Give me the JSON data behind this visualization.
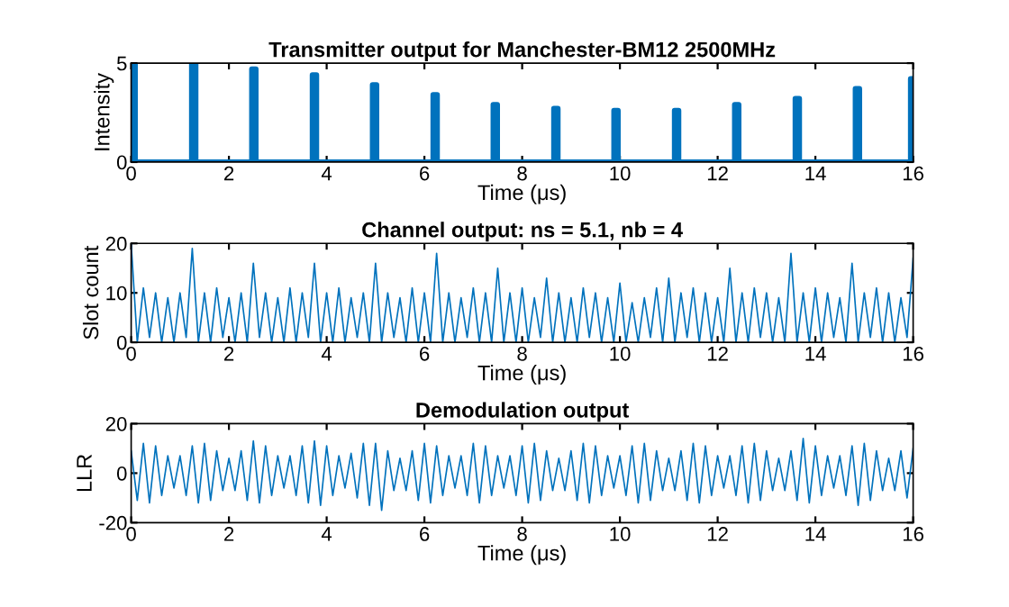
{
  "chart_data": [
    {
      "type": "line",
      "title": "Transmitter output for Manchester-BM12 2500MHz",
      "xlabel": "Time (μs)",
      "ylabel": "Intensity",
      "series": [
        {
          "color": "#0072bd",
          "x": [
            0,
            0,
            0.08,
            0.08,
            1.24,
            1.24,
            1.32,
            1.32,
            2.47,
            2.47,
            2.55,
            2.55,
            3.71,
            3.71,
            3.79,
            3.79,
            4.94,
            4.94,
            5.02,
            5.02,
            6.18,
            6.18,
            6.26,
            6.26,
            7.41,
            7.41,
            7.49,
            7.49,
            8.65,
            8.65,
            8.73,
            8.73,
            9.88,
            9.88,
            9.96,
            9.96,
            11.12,
            11.12,
            11.2,
            11.2,
            12.35,
            12.35,
            12.43,
            12.43,
            13.59,
            13.59,
            13.67,
            13.67,
            14.82,
            14.82,
            14.9,
            14.9,
            15.95,
            15.95,
            16
          ],
          "values": [
            0,
            5,
            5,
            0,
            0,
            5,
            5,
            0,
            0,
            4.7,
            4.7,
            0,
            0,
            4.4,
            4.4,
            0,
            0,
            3.9,
            3.9,
            0,
            0,
            3.4,
            3.4,
            0,
            0,
            2.9,
            2.9,
            0,
            0,
            2.7,
            2.7,
            0,
            0,
            2.6,
            2.6,
            0,
            0,
            2.6,
            2.6,
            0,
            0,
            2.9,
            2.9,
            0,
            0,
            3.2,
            3.2,
            0,
            0,
            3.7,
            3.7,
            0,
            0,
            4.2,
            4.2
          ]
        }
      ],
      "xlim": [
        0,
        16
      ],
      "xticks": [
        0,
        2,
        4,
        6,
        8,
        10,
        12,
        14,
        16
      ],
      "ylim": [
        0,
        5
      ],
      "yticks": [
        0,
        5
      ],
      "grid": false,
      "marker": "none",
      "line_style": "solid"
    },
    {
      "type": "line",
      "title": "Channel output: ns = 5.1, nb = 4",
      "xlabel": "Time (μs)",
      "ylabel": "Slot count",
      "series": [
        {
          "color": "#0072bd",
          "x": [
            0,
            0.125,
            0.25,
            0.375,
            0.5,
            0.625,
            0.75,
            0.875,
            1,
            1.125,
            1.25,
            1.375,
            1.5,
            1.625,
            1.75,
            1.875,
            2,
            2.125,
            2.25,
            2.375,
            2.5,
            2.625,
            2.75,
            2.875,
            3,
            3.125,
            3.25,
            3.375,
            3.5,
            3.625,
            3.75,
            3.875,
            4,
            4.125,
            4.25,
            4.375,
            4.5,
            4.625,
            4.75,
            4.875,
            5,
            5.125,
            5.25,
            5.375,
            5.5,
            5.625,
            5.75,
            5.875,
            6,
            6.125,
            6.25,
            6.375,
            6.5,
            6.625,
            6.75,
            6.875,
            7,
            7.125,
            7.25,
            7.375,
            7.5,
            7.625,
            7.75,
            7.875,
            8,
            8.125,
            8.25,
            8.375,
            8.5,
            8.625,
            8.75,
            8.875,
            9,
            9.125,
            9.25,
            9.375,
            9.5,
            9.625,
            9.75,
            9.875,
            10,
            10.125,
            10.25,
            10.375,
            10.5,
            10.625,
            10.75,
            10.875,
            11,
            11.125,
            11.25,
            11.375,
            11.5,
            11.625,
            11.75,
            11.875,
            12,
            12.125,
            12.25,
            12.375,
            12.5,
            12.625,
            12.75,
            12.875,
            13,
            13.125,
            13.25,
            13.375,
            13.5,
            13.625,
            13.75,
            13.875,
            14,
            14.125,
            14.25,
            14.375,
            14.5,
            14.625,
            14.75,
            14.875,
            15,
            15.125,
            15.25,
            15.375,
            15.5,
            15.625,
            15.75,
            15.875,
            16
          ],
          "values": [
            20,
            0,
            11,
            1,
            10,
            0,
            9,
            0,
            10,
            1,
            19,
            0,
            10,
            0,
            11,
            1,
            9,
            0,
            10,
            0,
            16,
            1,
            10,
            0,
            9,
            0,
            11,
            0,
            10,
            1,
            16,
            0,
            10,
            0,
            11,
            0,
            9,
            1,
            10,
            0,
            16,
            0,
            10,
            1,
            9,
            0,
            11,
            0,
            10,
            0,
            18,
            0,
            10,
            0,
            9,
            1,
            11,
            0,
            10,
            0,
            15,
            0,
            10,
            0,
            11,
            0,
            9,
            1,
            13,
            0,
            10,
            0,
            9,
            0,
            11,
            1,
            10,
            0,
            9,
            0,
            12,
            0,
            8,
            0,
            9,
            1,
            11,
            0,
            13,
            0,
            10,
            1,
            11,
            0,
            10,
            0,
            9,
            0,
            15,
            0,
            10,
            0,
            11,
            1,
            10,
            0,
            9,
            0,
            18,
            0,
            10,
            0,
            11,
            0,
            10,
            1,
            9,
            0,
            16,
            0,
            10,
            1,
            11,
            0,
            10,
            0,
            9,
            1,
            17
          ]
        }
      ],
      "xlim": [
        0,
        16
      ],
      "xticks": [
        0,
        2,
        4,
        6,
        8,
        10,
        12,
        14,
        16
      ],
      "ylim": [
        0,
        20
      ],
      "yticks": [
        0,
        10,
        20
      ],
      "grid": false,
      "marker": "none",
      "line_style": "solid"
    },
    {
      "type": "line",
      "title": "Demodulation output",
      "xlabel": "Time (μs)",
      "ylabel": "LLR",
      "series": [
        {
          "color": "#0072bd",
          "x": [
            0,
            0.125,
            0.25,
            0.375,
            0.5,
            0.625,
            0.75,
            0.875,
            1,
            1.125,
            1.25,
            1.375,
            1.5,
            1.625,
            1.75,
            1.875,
            2,
            2.125,
            2.25,
            2.375,
            2.5,
            2.625,
            2.75,
            2.875,
            3,
            3.125,
            3.25,
            3.375,
            3.5,
            3.625,
            3.75,
            3.875,
            4,
            4.125,
            4.25,
            4.375,
            4.5,
            4.625,
            4.75,
            4.875,
            5,
            5.125,
            5.25,
            5.375,
            5.5,
            5.625,
            5.75,
            5.875,
            6,
            6.125,
            6.25,
            6.375,
            6.5,
            6.625,
            6.75,
            6.875,
            7,
            7.125,
            7.25,
            7.375,
            7.5,
            7.625,
            7.75,
            7.875,
            8,
            8.125,
            8.25,
            8.375,
            8.5,
            8.625,
            8.75,
            8.875,
            9,
            9.125,
            9.25,
            9.375,
            9.5,
            9.625,
            9.75,
            9.875,
            10,
            10.125,
            10.25,
            10.375,
            10.5,
            10.625,
            10.75,
            10.875,
            11,
            11.125,
            11.25,
            11.375,
            11.5,
            11.625,
            11.75,
            11.875,
            12,
            12.125,
            12.25,
            12.375,
            12.5,
            12.625,
            12.75,
            12.875,
            13,
            13.125,
            13.25,
            13.375,
            13.5,
            13.625,
            13.75,
            13.875,
            14,
            14.125,
            14.25,
            14.375,
            14.5,
            14.625,
            14.75,
            14.875,
            15,
            15.125,
            15.25,
            15.375,
            15.5,
            15.625,
            15.75,
            15.875,
            16
          ],
          "values": [
            9,
            -11,
            12,
            -12,
            11,
            -9,
            7,
            -6,
            7,
            -9,
            11,
            -12,
            12,
            -11,
            9,
            -7,
            6,
            -7,
            9,
            -11,
            13,
            -12,
            11,
            -9,
            7,
            -6,
            7,
            -9,
            11,
            -12,
            13,
            -13,
            11,
            -9,
            7,
            -6,
            8,
            -10,
            12,
            -13,
            12,
            -15,
            9,
            -7,
            6,
            -7,
            9,
            -11,
            12,
            -12,
            11,
            -9,
            7,
            -6,
            7,
            -9,
            12,
            -12,
            11,
            -9,
            7,
            -6,
            7,
            -9,
            11,
            -12,
            12,
            -11,
            9,
            -7,
            6,
            -7,
            9,
            -11,
            12,
            -12,
            11,
            -9,
            7,
            -6,
            7,
            -9,
            11,
            -12,
            12,
            -11,
            9,
            -7,
            6,
            -7,
            9,
            -11,
            12,
            -12,
            11,
            -9,
            7,
            -6,
            7,
            -9,
            11,
            -12,
            12,
            -11,
            9,
            -7,
            6,
            -7,
            9,
            -11,
            14,
            -12,
            11,
            -9,
            7,
            -6,
            7,
            -9,
            11,
            -13,
            12,
            -11,
            9,
            -7,
            6,
            -7,
            9,
            -10,
            10
          ]
        }
      ],
      "xlim": [
        0,
        16
      ],
      "xticks": [
        0,
        2,
        4,
        6,
        8,
        10,
        12,
        14,
        16
      ],
      "ylim": [
        -20,
        20
      ],
      "yticks": [
        -20,
        0,
        20
      ],
      "grid": false,
      "marker": "none",
      "line_style": "solid"
    }
  ]
}
